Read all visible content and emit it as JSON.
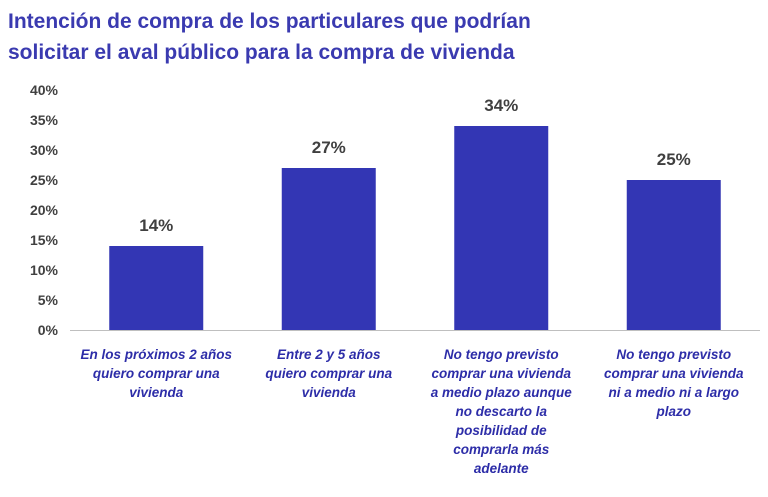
{
  "title_lines": [
    "Intención de compra de los particulares que podrían",
    "solicitar el aval público para la compra de vivienda"
  ],
  "colors": {
    "title": "#3a3ab0",
    "bar": "#3336b4",
    "axis_text": "#404040",
    "category_text": "#2d2da8"
  },
  "chart_data": {
    "type": "bar",
    "title": "Intención de compra de los particulares que podrían solicitar el aval público para la compra de vivienda",
    "categories": [
      [
        "En los próximos 2 años",
        "quiero comprar una",
        "vivienda"
      ],
      [
        "Entre 2 y 5 años",
        "quiero comprar una",
        "vivienda"
      ],
      [
        "No tengo previsto",
        "comprar una vivienda",
        "a medio plazo aunque",
        "no descarto la",
        "posibilidad de",
        "comprarla más",
        "adelante"
      ],
      [
        "No tengo previsto",
        "comprar una vivienda",
        "ni a medio ni a largo",
        "plazo"
      ]
    ],
    "values": [
      14,
      27,
      34,
      25
    ],
    "data_labels": [
      "14%",
      "27%",
      "34%",
      "25%"
    ],
    "ylim": [
      0,
      40
    ],
    "yticks": [
      "0%",
      "5%",
      "10%",
      "15%",
      "20%",
      "25%",
      "30%",
      "35%",
      "40%"
    ],
    "grid": false,
    "legend": "none"
  }
}
